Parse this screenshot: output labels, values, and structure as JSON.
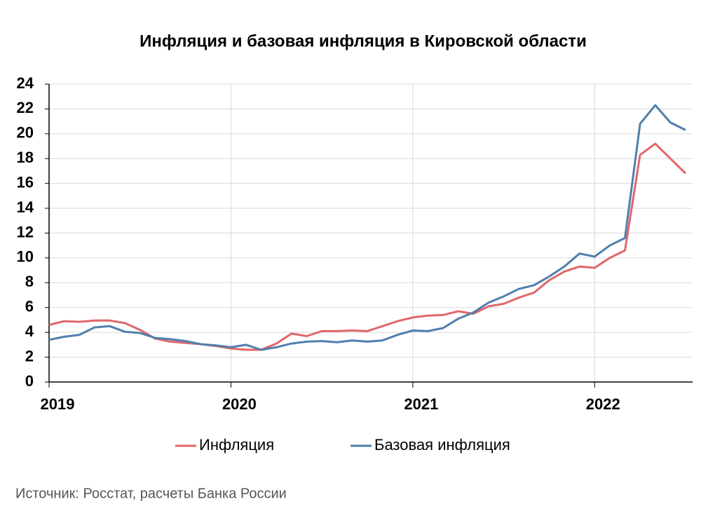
{
  "chart_data": {
    "type": "line",
    "title": "Инфляция и базовая инфляция в Кировской области",
    "categories": [
      "2019",
      null,
      null,
      null,
      null,
      null,
      null,
      null,
      null,
      null,
      null,
      null,
      "2020",
      null,
      null,
      null,
      null,
      null,
      null,
      null,
      null,
      null,
      null,
      null,
      "2021",
      null,
      null,
      null,
      null,
      null,
      null,
      null,
      null,
      null,
      null,
      null,
      "2022",
      null,
      null,
      null,
      null,
      null,
      null
    ],
    "series": [
      {
        "name": "Инфляция",
        "color": "#e0676a",
        "values": [
          4.6,
          4.9,
          4.85,
          4.95,
          4.95,
          4.75,
          4.2,
          3.5,
          3.25,
          3.15,
          3.05,
          2.9,
          2.7,
          2.6,
          2.6,
          3.1,
          3.9,
          3.7,
          4.1,
          4.1,
          4.15,
          4.1,
          4.5,
          4.9,
          5.2,
          5.35,
          5.4,
          5.7,
          5.5,
          6.1,
          6.3,
          6.8,
          7.2,
          8.2,
          8.9,
          9.3,
          9.2,
          10.0,
          10.6,
          18.3,
          19.2,
          18.0,
          16.8
        ]
      },
      {
        "name": "Базовая инфляция",
        "color": "#4f7fae",
        "values": [
          3.4,
          3.65,
          3.8,
          4.4,
          4.5,
          4.05,
          3.95,
          3.55,
          3.45,
          3.3,
          3.05,
          2.95,
          2.8,
          3.0,
          2.6,
          2.8,
          3.1,
          3.25,
          3.3,
          3.2,
          3.35,
          3.25,
          3.35,
          3.8,
          4.15,
          4.1,
          4.35,
          5.1,
          5.6,
          6.4,
          6.9,
          7.5,
          7.8,
          8.5,
          9.3,
          10.35,
          10.1,
          11.0,
          11.6,
          20.8,
          22.3,
          20.9,
          20.3
        ]
      }
    ],
    "ylim": [
      0,
      24
    ],
    "yticks": [
      0,
      2,
      4,
      6,
      8,
      10,
      12,
      14,
      16,
      18,
      20,
      22,
      24
    ],
    "grid": true,
    "legend": "bottom"
  },
  "source": "Источник: Росстат, расчеты Банка России"
}
